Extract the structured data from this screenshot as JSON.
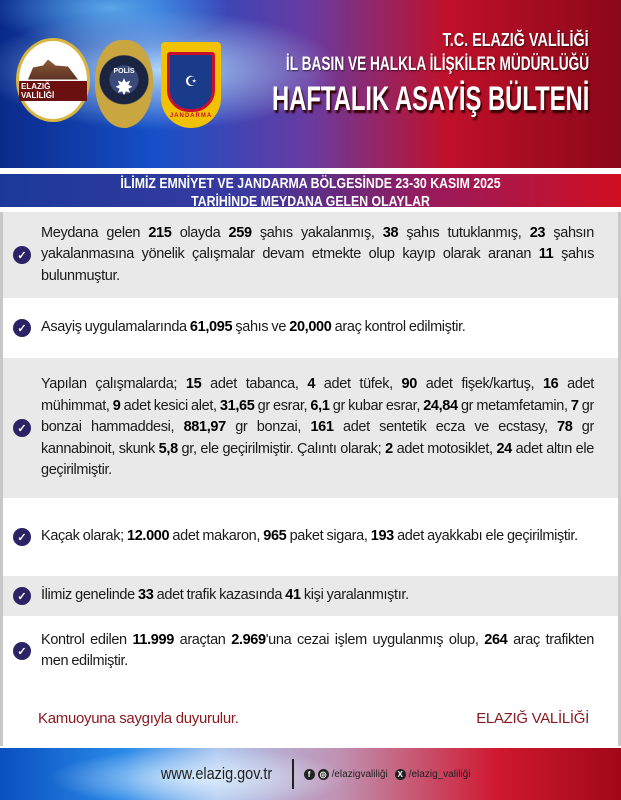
{
  "header": {
    "logo_vali_label": "ELAZIĞ VALİLİĞİ",
    "logo_polis_label": "POLİS",
    "logo_jandarma_label": "JANDARMA",
    "line1": "T.C. ELAZIĞ VALİLİĞİ",
    "line2": "İL BASIN VE HALKLA İLİŞKİLER MÜDÜRLÜĞÜ",
    "title": "HAFTALIK ASAYİŞ BÜLTENİ"
  },
  "subheader": {
    "line1": "İLİMİZ EMNİYET VE JANDARMA BÖLGESİNDE 23-30 KASIM 2025",
    "line2": "TARİHİNDE MEYDANA GELEN OLAYLAR"
  },
  "items": [
    {
      "parts": [
        {
          "t": "Meydana gelen "
        },
        {
          "t": "215",
          "b": 1
        },
        {
          "t": " olayda "
        },
        {
          "t": "259",
          "b": 1
        },
        {
          "t": " şahıs yakalanmış, "
        },
        {
          "t": "38",
          "b": 1
        },
        {
          "t": " şahıs tutuklanmış, "
        },
        {
          "t": "23",
          "b": 1
        },
        {
          "t": " şahsın yakalanmasına yönelik çalışmalar devam etmekte olup kayıp olarak aranan "
        },
        {
          "t": "11",
          "b": 1
        },
        {
          "t": " şahıs bulunmuştur."
        }
      ]
    },
    {
      "parts": [
        {
          "t": "Asayiş uygulamalarında "
        },
        {
          "t": "61,095",
          "b": 1
        },
        {
          "t": " şahıs ve "
        },
        {
          "t": "20,000",
          "b": 1
        },
        {
          "t": " araç kontrol edilmiştir."
        }
      ]
    },
    {
      "parts": [
        {
          "t": "Yapılan çalışmalarda; "
        },
        {
          "t": "15",
          "b": 1
        },
        {
          "t": " adet tabanca, "
        },
        {
          "t": "4",
          "b": 1
        },
        {
          "t": " adet tüfek, "
        },
        {
          "t": "90",
          "b": 1
        },
        {
          "t": " adet fişek/kartuş, "
        },
        {
          "t": "16",
          "b": 1
        },
        {
          "t": " adet mühimmat, "
        },
        {
          "t": "9",
          "b": 1
        },
        {
          "t": " adet kesici alet, "
        },
        {
          "t": "31,65",
          "b": 1
        },
        {
          "t": " gr esrar, "
        },
        {
          "t": "6,1",
          "b": 1
        },
        {
          "t": " gr kubar esrar, "
        },
        {
          "t": "24,84",
          "b": 1
        },
        {
          "t": " gr metamfetamin, "
        },
        {
          "t": "7",
          "b": 1
        },
        {
          "t": " gr bonzai hammaddesi, "
        },
        {
          "t": "881,97",
          "b": 1
        },
        {
          "t": " gr bonzai, "
        },
        {
          "t": "161",
          "b": 1
        },
        {
          "t": " adet sentetik ecza ve ecstasy, "
        },
        {
          "t": "78",
          "b": 1
        },
        {
          "t": " gr kannabinoit, skunk "
        },
        {
          "t": "5,8",
          "b": 1
        },
        {
          "t": " gr, ele geçirilmiştir. Çalıntı olarak; "
        },
        {
          "t": "2",
          "b": 1
        },
        {
          "t": " adet motosiklet, "
        },
        {
          "t": "24",
          "b": 1
        },
        {
          "t": " adet altın ele geçirilmiştir."
        }
      ]
    },
    {
      "parts": [
        {
          "t": "Kaçak olarak; "
        },
        {
          "t": "12.000",
          "b": 1
        },
        {
          "t": " adet makaron, "
        },
        {
          "t": "965",
          "b": 1
        },
        {
          "t": " paket sigara, "
        },
        {
          "t": "193",
          "b": 1
        },
        {
          "t": " adet ayakkabı ele geçirilmiştir."
        }
      ]
    },
    {
      "parts": [
        {
          "t": "İlimiz genelinde "
        },
        {
          "t": "33",
          "b": 1
        },
        {
          "t": " adet trafik kazasında "
        },
        {
          "t": "41",
          "b": 1
        },
        {
          "t": " kişi yaralanmıştır."
        }
      ]
    },
    {
      "parts": [
        {
          "t": "Kontrol edilen "
        },
        {
          "t": "11.999",
          "b": 1
        },
        {
          "t": " araçtan "
        },
        {
          "t": "2.969",
          "b": 1
        },
        {
          "t": "'una cezai işlem uygulanmış olup, "
        },
        {
          "t": "264",
          "b": 1
        },
        {
          "t": " araç trafikten men edilmiştir."
        }
      ]
    }
  ],
  "closing": {
    "left": "Kamuoyuna saygıyla duyurulur.",
    "right": "ELAZIĞ VALİLİĞİ"
  },
  "footer": {
    "website": "www.elazig.gov.tr",
    "social1": "/elazigvaliliği",
    "social2": "/elazig_valiliği",
    "icons": [
      "facebook-icon",
      "instagram-icon",
      "x-icon"
    ]
  },
  "colors": {
    "check": "#2a2466",
    "closing": "#8a1a22",
    "row_gray": "#e9e9ea"
  }
}
